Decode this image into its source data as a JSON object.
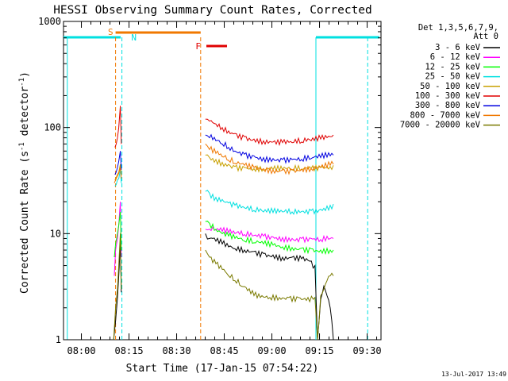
{
  "chart_data": {
    "type": "line",
    "title": "HESSI Observing Summary Count Rates, Corrected",
    "xlabel": "Start Time (17-Jan-15 07:54:22)",
    "ylabel": "Corrected Count Rate (s⁻¹ detector⁻¹)",
    "ylabel_base": "Corrected Count Rate (s",
    "ylabel_mid": " detector",
    "ylabel_end": ")",
    "ylabel_sup": "-1",
    "yscale": "log",
    "ylim": [
      1,
      1000
    ],
    "xlim_min": [
      0,
      100
    ],
    "x_tick_labels": [
      "08:00",
      "08:15",
      "08:30",
      "08:45",
      "09:00",
      "09:15",
      "09:30"
    ],
    "x_tick_minutes": [
      5.6333,
      20.6333,
      35.6333,
      50.6333,
      65.6333,
      80.6333,
      95.6333
    ],
    "y_tick_labels": [
      "1",
      "10",
      "100",
      "1000"
    ],
    "y_tick_values": [
      1,
      10,
      100,
      1000
    ],
    "legend_header": [
      "Det 1,3,5,6,7,9,",
      "Att 0"
    ],
    "legend_placement": "right",
    "footer_date": "13-Jul-2017 13:49",
    "flags": {
      "saa_color": "#00e0e0",
      "saa_segments": [
        [
          0,
          18
        ],
        [
          79.5,
          99.5
        ]
      ],
      "night_label": "N",
      "night_x": 20.6,
      "sunlight_label": "S",
      "sunlight_color": "#f07800",
      "sunlight_segment": [
        16.4,
        43.2
      ],
      "flare_label": "F",
      "flare_color": "#e00000",
      "flare_segment": [
        45.0,
        51.5
      ],
      "dashed_x": [
        [
          16.4,
          "#f07800"
        ],
        [
          18.4,
          "#00e0e0"
        ],
        [
          43.2,
          "#f07800"
        ],
        [
          95.8,
          "#00e0e0"
        ]
      ],
      "solid_x": [
        [
          1.2,
          "#00e0e0"
        ],
        [
          79.5,
          "#00e0e0"
        ]
      ]
    },
    "series": [
      {
        "name": "3 - 6 keV",
        "color": "#000000",
        "x": [
          15.8,
          16.4,
          17.0,
          17.4,
          17.9,
          18.2,
          44.7,
          46.0,
          48.0,
          50.0,
          52.0,
          54.0,
          57.0,
          60.0,
          63.0,
          66.0,
          69.0,
          72.0,
          75.0,
          77.5,
          79.2,
          80.0,
          81.0,
          82.0,
          83.0,
          84.0,
          85.0
        ],
        "y": [
          1,
          1.5,
          2.5,
          4,
          8,
          2.8,
          10,
          9,
          8.5,
          8,
          7.5,
          7.2,
          7,
          6.8,
          6.5,
          6.3,
          6,
          6,
          5.8,
          5.5,
          5,
          1,
          2.4,
          3.2,
          2.6,
          2,
          1
        ]
      },
      {
        "name": "6 - 12 keV",
        "color": "#ff00ff",
        "x": [
          16.0,
          16.4,
          17.0,
          17.4,
          17.9,
          18.2,
          44.7,
          46.0,
          48.0,
          50.0,
          52.0,
          54.0,
          57.0,
          60.0,
          63.0,
          66.0,
          69.0,
          72.0,
          75.0,
          78.0,
          81.0,
          84.0,
          85.0
        ],
        "y": [
          4,
          7,
          9,
          12,
          20,
          6,
          11,
          11,
          10.8,
          10.5,
          10.2,
          10,
          9.8,
          9.6,
          9.5,
          9.3,
          9.2,
          9,
          9,
          9,
          8.8,
          9,
          9
        ]
      },
      {
        "name": "12 - 25 keV",
        "color": "#00ff00",
        "x": [
          16.0,
          16.4,
          17.0,
          17.4,
          17.9,
          18.2,
          44.7,
          46.0,
          48.0,
          50.0,
          52.0,
          54.0,
          57.0,
          60.0,
          63.0,
          66.0,
          69.0,
          72.0,
          75.0,
          78.0,
          81.0,
          84.0,
          85.0
        ],
        "y": [
          6,
          8,
          10,
          12,
          16,
          7,
          13,
          12.5,
          11,
          10,
          9.5,
          9,
          8.5,
          8.2,
          8,
          7.8,
          7.5,
          7.4,
          7.3,
          7.2,
          7,
          7,
          7
        ]
      },
      {
        "name": "25 - 50 keV",
        "color": "#00e0e0",
        "x": [
          16.2,
          16.6,
          17.0,
          17.4,
          17.9,
          18.2,
          44.7,
          46.0,
          48.0,
          50.0,
          52.0,
          54.0,
          57.0,
          60.0,
          63.0,
          66.0,
          69.0,
          72.0,
          75.0,
          78.0,
          81.0,
          84.0,
          85.0
        ],
        "y": [
          28,
          29,
          32,
          33,
          40,
          30,
          25,
          24,
          22,
          21,
          19.5,
          18.5,
          17.5,
          16.5,
          16,
          15.8,
          16,
          16,
          16.2,
          16.5,
          17,
          18.5,
          19
        ]
      },
      {
        "name": "50 - 100 keV",
        "color": "#c8a000",
        "x": [
          16.2,
          16.6,
          17.0,
          17.4,
          17.9,
          18.2,
          44.7,
          46.0,
          48.0,
          50.0,
          52.0,
          54.0,
          57.0,
          60.0,
          63.0,
          66.0,
          69.0,
          72.0,
          75.0,
          78.0,
          81.0,
          84.0,
          85.0
        ],
        "y": [
          32,
          34,
          36,
          38,
          45,
          35,
          55,
          52,
          50,
          47,
          45,
          43,
          42,
          41,
          40,
          40,
          40,
          40,
          40.5,
          41,
          42,
          43,
          44
        ]
      },
      {
        "name": "100 - 300 keV",
        "color": "#e00000",
        "x": [
          16.2,
          16.6,
          17.0,
          17.4,
          17.9,
          18.2,
          44.7,
          46.0,
          48.0,
          50.0,
          52.0,
          54.0,
          57.0,
          60.0,
          63.0,
          66.0,
          69.0,
          72.0,
          75.0,
          78.0,
          81.0,
          84.0,
          85.0
        ],
        "y": [
          65,
          70,
          80,
          100,
          160,
          70,
          120,
          115,
          108,
          100,
          93,
          88,
          82,
          78,
          75,
          73,
          72,
          72,
          73,
          75,
          78,
          82,
          85
        ]
      },
      {
        "name": "300 - 800 keV",
        "color": "#0000e0",
        "x": [
          16.2,
          16.6,
          17.0,
          17.4,
          17.9,
          18.2,
          44.7,
          46.0,
          48.0,
          50.0,
          52.0,
          54.0,
          57.0,
          60.0,
          63.0,
          66.0,
          69.0,
          72.0,
          75.0,
          78.0,
          81.0,
          84.0,
          85.0
        ],
        "y": [
          36,
          38,
          42,
          48,
          60,
          40,
          85,
          80,
          75,
          70,
          65,
          60,
          56,
          54,
          52,
          51,
          50,
          50,
          50,
          51,
          52,
          54,
          55
        ]
      },
      {
        "name": "800 - 7000 keV",
        "color": "#f07800",
        "x": [
          16.0,
          16.6,
          17.0,
          17.4,
          17.9,
          18.2,
          44.7,
          46.0,
          48.0,
          50.0,
          52.0,
          54.0,
          57.0,
          60.0,
          63.0,
          66.0,
          69.0,
          72.0,
          75.0,
          78.0,
          81.0,
          84.0,
          85.0
        ],
        "y": [
          30,
          33,
          35,
          37,
          42,
          33,
          70,
          62,
          57,
          53,
          49,
          46,
          44,
          42,
          41,
          40,
          40,
          40,
          40.5,
          41,
          42,
          44,
          45
        ]
      },
      {
        "name": "7000 - 20000 keV",
        "color": "#7a7a00",
        "x": [
          15.8,
          16.4,
          17.0,
          17.4,
          17.9,
          18.2,
          44.7,
          46.0,
          48.0,
          50.0,
          52.0,
          54.0,
          56.0,
          58.0,
          60.0,
          62.0,
          65.0,
          68.0,
          71.0,
          74.0,
          77.0,
          79.2,
          80.0,
          81.0,
          82.0,
          83.0,
          84.0,
          85.0
        ],
        "y": [
          1,
          2,
          3,
          5,
          10,
          3,
          7,
          6,
          5.2,
          4.6,
          4,
          3.6,
          3.2,
          2.9,
          2.6,
          2.5,
          2.5,
          2.5,
          2.5,
          2.5,
          2.5,
          2.5,
          1,
          2.6,
          3,
          3.6,
          4,
          4
        ]
      }
    ]
  }
}
